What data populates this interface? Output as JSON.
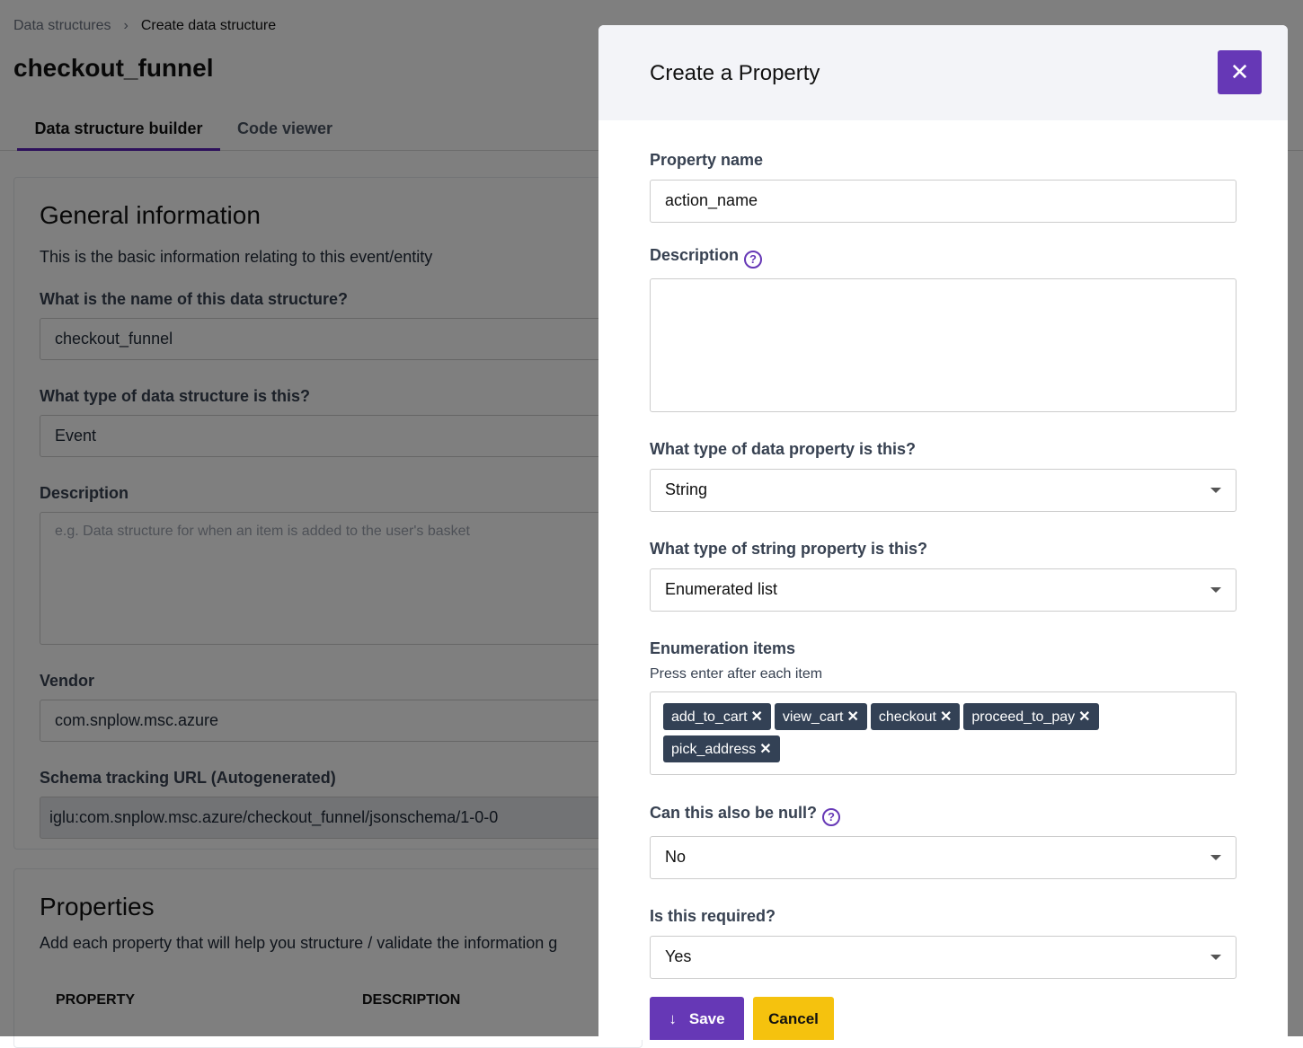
{
  "breadcrumb": {
    "parent": "Data structures",
    "current": "Create data structure"
  },
  "page_title": "checkout_funnel",
  "tabs": [
    "Data structure builder",
    "Code viewer"
  ],
  "general": {
    "heading": "General information",
    "intro": "This is the basic information relating to this event/entity",
    "name_label": "What is the name of this data structure?",
    "name_value": "checkout_funnel",
    "type_label": "What type of data structure is this?",
    "type_value": "Event",
    "desc_label": "Description",
    "desc_placeholder": "e.g. Data structure for when an item is added to the user's basket",
    "vendor_label": "Vendor",
    "vendor_value": "com.snplow.msc.azure",
    "url_label": "Schema tracking URL (Autogenerated)",
    "url_value": "iglu:com.snplow.msc.azure/checkout_funnel/jsonschema/1-0-0"
  },
  "properties": {
    "heading": "Properties",
    "intro": "Add each property that will help you structure / validate the information g",
    "col_property": "PROPERTY",
    "col_description": "DESCRIPTION"
  },
  "drawer": {
    "title": "Create a Property",
    "close_icon": "close-icon",
    "name_label": "Property name",
    "name_value": "action_name",
    "desc_label": "Description",
    "desc_value": "",
    "type_label": "What type of data property is this?",
    "type_value": "String",
    "string_type_label": "What type of string property is this?",
    "string_type_value": "Enumerated list",
    "enum_label": "Enumeration items",
    "enum_hint": "Press enter after each item",
    "enum_items": [
      "add_to_cart",
      "view_cart",
      "checkout",
      "proceed_to_pay",
      "pick_address"
    ],
    "null_label": "Can this also be null?",
    "null_value": "No",
    "required_label": "Is this required?",
    "required_value": "Yes",
    "save_label": "Save",
    "cancel_label": "Cancel"
  },
  "colors": {
    "accent": "#6638b6",
    "cancel": "#f5c20e",
    "tag": "#334155"
  }
}
